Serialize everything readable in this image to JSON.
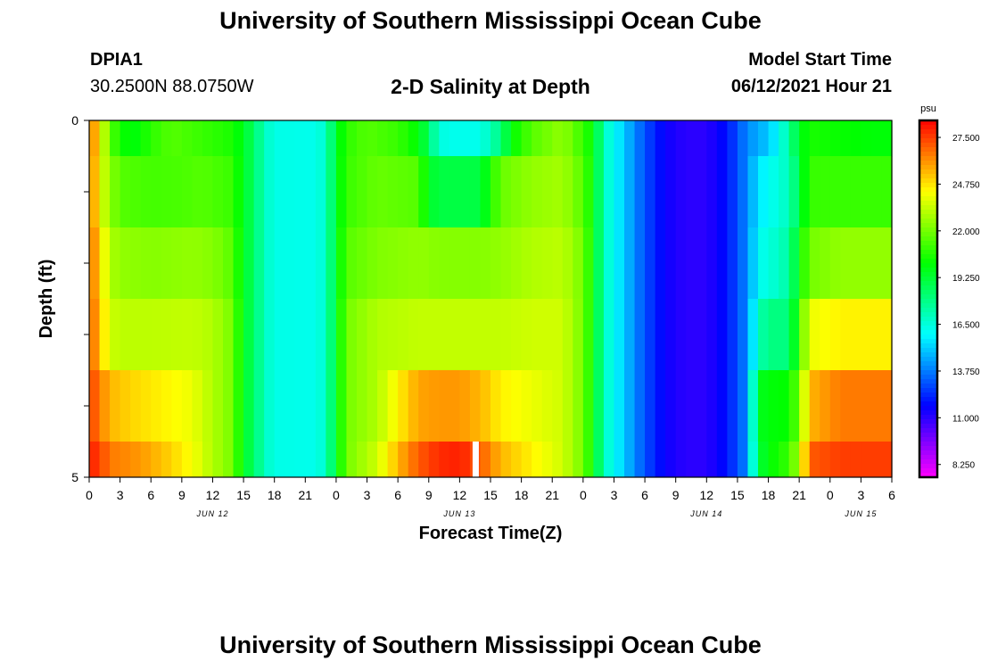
{
  "header": {
    "title": "University of Southern Mississippi Ocean Cube",
    "station_id": "DPIA1",
    "coordinates": "30.2500N  88.0750W",
    "chart_title": "2-D Salinity at Depth",
    "model_label": "Model Start Time",
    "model_time": "06/12/2021 Hour 21"
  },
  "footer": {
    "title": "University of Southern Mississippi Ocean Cube"
  },
  "chart_data": {
    "type": "heatmap",
    "title": "2-D Salinity at Depth",
    "xlabel": "Forecast Time(Z)",
    "ylabel": "Depth (ft)",
    "colorbar_unit": "psu",
    "colorbar_ticks": [
      "27.500",
      "24.750",
      "22.000",
      "19.250",
      "16.500",
      "13.750",
      "11.000",
      "8.250"
    ],
    "value_range": [
      7.5,
      28.5
    ],
    "ylim": [
      0,
      5
    ],
    "y_tick_labels": [
      "0",
      "5"
    ],
    "x_tick_labels": [
      "0",
      "3",
      "6",
      "9",
      "12",
      "15",
      "18",
      "21",
      "0",
      "3",
      "6",
      "9",
      "12",
      "15",
      "18",
      "21",
      "0",
      "3",
      "6",
      "9",
      "12",
      "15",
      "18",
      "21",
      "0",
      "3",
      "6"
    ],
    "date_labels": [
      {
        "label": "JUN 12",
        "hour": 12
      },
      {
        "label": "JUN 13",
        "hour": 36
      },
      {
        "label": "JUN 14",
        "hour": 60
      },
      {
        "label": "JUN 15",
        "hour": 75
      }
    ],
    "hours": [
      0,
      78
    ],
    "depth_layers": [
      "0-1",
      "1-2",
      "2-3",
      "3-4",
      "4-5"
    ],
    "layer_keyframes": [
      [
        [
          0,
          27
        ],
        [
          1,
          24.5
        ],
        [
          2,
          21.5
        ],
        [
          3,
          20.5
        ],
        [
          4,
          19.8
        ],
        [
          5,
          20.2
        ],
        [
          6,
          20.8
        ],
        [
          8,
          21.5
        ],
        [
          11,
          21
        ],
        [
          14,
          20.5
        ],
        [
          15,
          19.5
        ],
        [
          16,
          18.5
        ],
        [
          17,
          17
        ],
        [
          18,
          16.3
        ],
        [
          22,
          16.2
        ],
        [
          23,
          16.8
        ],
        [
          24,
          19.5
        ],
        [
          25,
          20.8
        ],
        [
          27,
          21.5
        ],
        [
          30,
          21
        ],
        [
          32,
          20
        ],
        [
          33,
          18.5
        ],
        [
          34,
          16.5
        ],
        [
          35,
          16.2
        ],
        [
          38,
          16.2
        ],
        [
          40,
          18
        ],
        [
          41,
          20
        ],
        [
          43,
          21.5
        ],
        [
          46,
          22.5
        ],
        [
          48,
          21
        ],
        [
          49,
          20
        ],
        [
          50,
          17
        ],
        [
          51,
          16
        ],
        [
          53,
          14
        ],
        [
          54,
          13
        ],
        [
          56,
          11.5
        ],
        [
          58,
          11
        ],
        [
          60,
          11
        ],
        [
          62,
          12
        ],
        [
          64,
          14
        ],
        [
          66,
          15
        ],
        [
          67,
          16
        ],
        [
          68,
          17.5
        ],
        [
          69,
          19.5
        ],
        [
          70,
          20.5
        ],
        [
          73,
          20.2
        ],
        [
          76,
          20
        ],
        [
          78,
          20
        ]
      ],
      [
        [
          0,
          27
        ],
        [
          1,
          24
        ],
        [
          2,
          22.5
        ],
        [
          3,
          21.5
        ],
        [
          6,
          21.2
        ],
        [
          9,
          21.3
        ],
        [
          11,
          21.5
        ],
        [
          14,
          21
        ],
        [
          15,
          19.5
        ],
        [
          16,
          18.5
        ],
        [
          17,
          17
        ],
        [
          18,
          16.3
        ],
        [
          22,
          16.2
        ],
        [
          23,
          16.8
        ],
        [
          24,
          19.5
        ],
        [
          25,
          21
        ],
        [
          28,
          21.8
        ],
        [
          32,
          21.5
        ],
        [
          33,
          19.5
        ],
        [
          34,
          19
        ],
        [
          38,
          19
        ],
        [
          39,
          20.5
        ],
        [
          40,
          21.8
        ],
        [
          43,
          22.5
        ],
        [
          46,
          22.8
        ],
        [
          48,
          21.5
        ],
        [
          49,
          20
        ],
        [
          50,
          17
        ],
        [
          51,
          16
        ],
        [
          53,
          14
        ],
        [
          54,
          13
        ],
        [
          56,
          11.5
        ],
        [
          58,
          11
        ],
        [
          60,
          11
        ],
        [
          62,
          12
        ],
        [
          64,
          14
        ],
        [
          65,
          15.5
        ],
        [
          66,
          16
        ],
        [
          67,
          16.5
        ],
        [
          68,
          17
        ],
        [
          69,
          19
        ],
        [
          70,
          21
        ],
        [
          73,
          21
        ],
        [
          78,
          21
        ]
      ],
      [
        [
          0,
          27
        ],
        [
          1,
          25
        ],
        [
          2,
          23
        ],
        [
          3,
          22.5
        ],
        [
          6,
          22.3
        ],
        [
          10,
          22.5
        ],
        [
          12,
          22.3
        ],
        [
          14,
          21.5
        ],
        [
          15,
          19.5
        ],
        [
          16,
          18.5
        ],
        [
          17,
          17
        ],
        [
          18,
          16.3
        ],
        [
          22,
          16.2
        ],
        [
          23,
          16.8
        ],
        [
          24,
          19.5
        ],
        [
          25,
          21.5
        ],
        [
          28,
          22.2
        ],
        [
          32,
          22.5
        ],
        [
          34,
          22.3
        ],
        [
          38,
          22.3
        ],
        [
          40,
          22.5
        ],
        [
          43,
          23
        ],
        [
          46,
          23.2
        ],
        [
          48,
          22
        ],
        [
          49,
          20
        ],
        [
          50,
          17
        ],
        [
          51,
          16
        ],
        [
          53,
          14
        ],
        [
          54,
          13
        ],
        [
          56,
          11.5
        ],
        [
          58,
          11
        ],
        [
          60,
          11
        ],
        [
          62,
          12
        ],
        [
          64,
          14
        ],
        [
          65,
          16
        ],
        [
          66,
          16.5
        ],
        [
          67,
          16.8
        ],
        [
          68,
          17.5
        ],
        [
          69,
          20
        ],
        [
          70,
          22
        ],
        [
          73,
          22.5
        ],
        [
          78,
          22.5
        ]
      ],
      [
        [
          0,
          27
        ],
        [
          1,
          25.5
        ],
        [
          2,
          23.5
        ],
        [
          3,
          23.2
        ],
        [
          6,
          23.2
        ],
        [
          10,
          23.3
        ],
        [
          12,
          23
        ],
        [
          14,
          22
        ],
        [
          15,
          19.5
        ],
        [
          16,
          18.5
        ],
        [
          17,
          17
        ],
        [
          18,
          16.3
        ],
        [
          22,
          16.2
        ],
        [
          23,
          16.8
        ],
        [
          24,
          19.5
        ],
        [
          25,
          22
        ],
        [
          28,
          23
        ],
        [
          32,
          23.3
        ],
        [
          34,
          23.3
        ],
        [
          38,
          23.3
        ],
        [
          40,
          23.3
        ],
        [
          43,
          23.5
        ],
        [
          46,
          23.5
        ],
        [
          48,
          22
        ],
        [
          49,
          20
        ],
        [
          50,
          17
        ],
        [
          51,
          16
        ],
        [
          53,
          14
        ],
        [
          54,
          13
        ],
        [
          56,
          11.5
        ],
        [
          58,
          11
        ],
        [
          60,
          11
        ],
        [
          62,
          12
        ],
        [
          64,
          14
        ],
        [
          65,
          17
        ],
        [
          66,
          18
        ],
        [
          67,
          18
        ],
        [
          68,
          18
        ],
        [
          69,
          21
        ],
        [
          70,
          24
        ],
        [
          73,
          24.5
        ],
        [
          78,
          24.5
        ]
      ],
      [
        [
          0,
          27.5
        ],
        [
          1,
          26.5
        ],
        [
          2,
          25.5
        ],
        [
          4,
          25
        ],
        [
          7,
          24.5
        ],
        [
          9,
          24.2
        ],
        [
          10,
          24
        ],
        [
          12,
          23
        ],
        [
          14,
          22
        ],
        [
          15,
          19.5
        ],
        [
          16,
          18.5
        ],
        [
          17,
          17
        ],
        [
          18,
          16.3
        ],
        [
          22,
          16.2
        ],
        [
          23,
          16.8
        ],
        [
          24,
          19.5
        ],
        [
          25,
          22
        ],
        [
          28,
          23
        ],
        [
          30,
          24.5
        ],
        [
          32,
          25.8
        ],
        [
          34,
          26
        ],
        [
          36,
          26
        ],
        [
          38,
          25.5
        ],
        [
          40,
          24.5
        ],
        [
          43,
          24
        ],
        [
          46,
          23.5
        ],
        [
          48,
          22
        ],
        [
          49,
          20
        ],
        [
          50,
          17
        ],
        [
          51,
          16
        ],
        [
          53,
          14
        ],
        [
          54,
          13
        ],
        [
          56,
          11.5
        ],
        [
          58,
          11
        ],
        [
          60,
          11
        ],
        [
          62,
          12
        ],
        [
          64,
          14
        ],
        [
          65,
          19.5
        ],
        [
          66,
          20
        ],
        [
          67,
          20
        ],
        [
          68,
          20.2
        ],
        [
          69,
          22
        ],
        [
          70,
          25.5
        ],
        [
          73,
          26.5
        ],
        [
          78,
          26.5
        ]
      ],
      [
        [
          0,
          28
        ],
        [
          1,
          27.5
        ],
        [
          2,
          26.5
        ],
        [
          5,
          26
        ],
        [
          8,
          25
        ],
        [
          10,
          24.2
        ],
        [
          12,
          23
        ],
        [
          14,
          22
        ],
        [
          15,
          19.5
        ],
        [
          16,
          18.5
        ],
        [
          17,
          17
        ],
        [
          18,
          16.3
        ],
        [
          22,
          16.2
        ],
        [
          23,
          16.8
        ],
        [
          24,
          19.5
        ],
        [
          25,
          22
        ],
        [
          28,
          23.5
        ],
        [
          30,
          25.5
        ],
        [
          32,
          27
        ],
        [
          34,
          27.8
        ],
        [
          36,
          28
        ],
        [
          38,
          27
        ],
        [
          40,
          25.5
        ],
        [
          43,
          24.5
        ],
        [
          46,
          23.5
        ],
        [
          48,
          22
        ],
        [
          49,
          20
        ],
        [
          50,
          17
        ],
        [
          51,
          16
        ],
        [
          53,
          14
        ],
        [
          54,
          13
        ],
        [
          56,
          11.5
        ],
        [
          58,
          11
        ],
        [
          60,
          11
        ],
        [
          62,
          12
        ],
        [
          64,
          14
        ],
        [
          65,
          19
        ],
        [
          66,
          20
        ],
        [
          67,
          20.5
        ],
        [
          68,
          21
        ],
        [
          69,
          23
        ],
        [
          70,
          27
        ],
        [
          73,
          27.5
        ],
        [
          78,
          27.5
        ]
      ]
    ],
    "missing_cell": {
      "hour": 37,
      "layer": 4
    }
  }
}
